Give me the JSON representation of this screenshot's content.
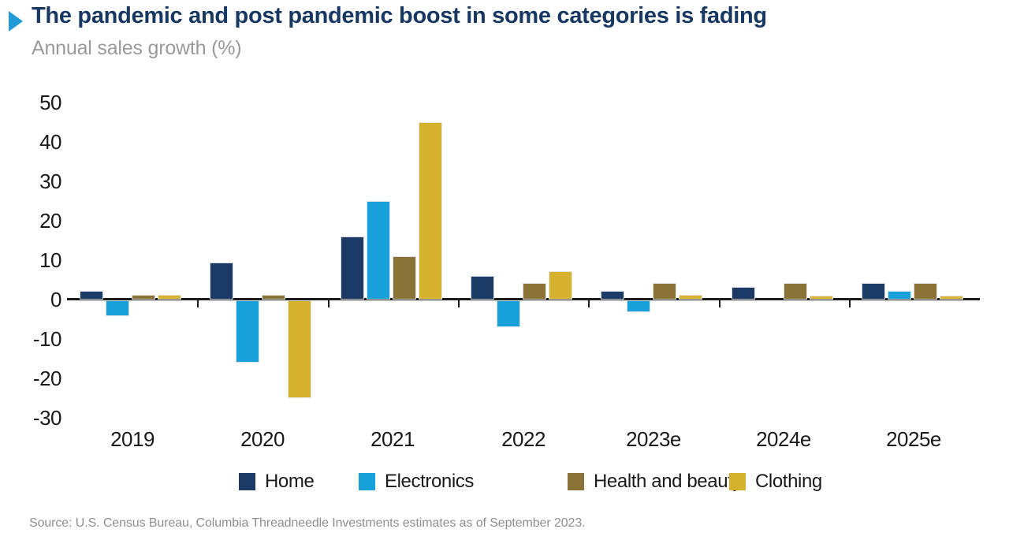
{
  "header": {
    "title": "The pandemic and post pandemic boost in some categories is fading",
    "subtitle": "Annual sales growth (%)"
  },
  "source": "Source: U.S. Census Bureau, Columbia Threadneedle Investments estimates as of September 2023.",
  "colors": {
    "title_navy": "#173863",
    "bullet_blue": "#1F9CD9",
    "subtitle_gray": "#9A9A9A",
    "axis_black": "#1a1a1a",
    "source_gray": "#8F8F8F",
    "home": "#1B3A66",
    "electronics": "#18A0DB",
    "health_and_beauty": "#8B7337",
    "clothing": "#D5B12E"
  },
  "chart_data": {
    "type": "bar",
    "title": "The pandemic and post pandemic boost in some categories is fading",
    "subtitle": "Annual sales growth (%)",
    "xlabel": "",
    "ylabel": "Annual sales growth (%)",
    "ylim": [
      -30,
      50
    ],
    "yticks": [
      50,
      40,
      30,
      20,
      10,
      0,
      -10,
      -20,
      -30
    ],
    "grid": false,
    "legend_position": "bottom",
    "categories": [
      "2019",
      "2020",
      "2021",
      "2022",
      "2023e",
      "2024e",
      "2025e"
    ],
    "series": [
      {
        "name": "Home",
        "color": "#1B3A66",
        "values": [
          2.2,
          9.3,
          16,
          6.0,
          2.2,
          3.1,
          4.2
        ]
      },
      {
        "name": "Electronics",
        "color": "#18A0DB",
        "values": [
          -4,
          -15.8,
          25,
          -6.7,
          -3,
          0,
          2.1
        ]
      },
      {
        "name": "Health and beauty",
        "color": "#8B7337",
        "values": [
          1.1,
          1.2,
          11,
          4.1,
          4.2,
          4.1,
          4.2
        ]
      },
      {
        "name": "Clothing",
        "color": "#D5B12E",
        "values": [
          1.1,
          -24.7,
          45,
          7.1,
          1.1,
          1.0,
          1.0
        ]
      }
    ]
  }
}
